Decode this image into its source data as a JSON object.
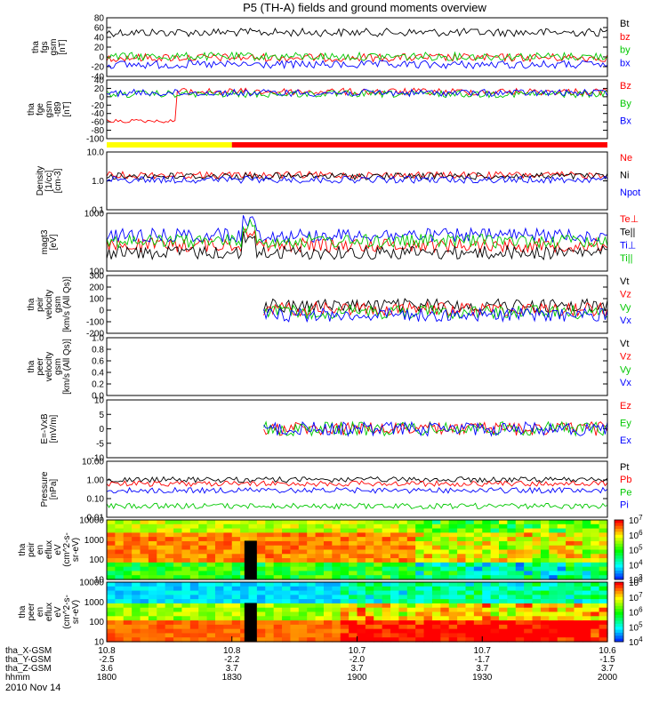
{
  "chart_data": {
    "type": "line",
    "title": "P5 (TH-A) fields and ground moments overview",
    "date_label": "2010 Nov 14",
    "time_axis": {
      "range": [
        "18:00",
        "20:00"
      ],
      "ticks": [
        "1800",
        "1830",
        "1900",
        "1930",
        "2000"
      ]
    },
    "ephemeris": {
      "rows": [
        {
          "label": "tha_X-GSM",
          "values": [
            "10.8",
            "10.8",
            "10.7",
            "10.7",
            "10.6"
          ]
        },
        {
          "label": "tha_Y-GSM",
          "values": [
            "-2.5",
            "-2.2",
            "-2.0",
            "-1.7",
            "-1.5"
          ]
        },
        {
          "label": "tha_Z-GSM",
          "values": [
            "3.6",
            "3.7",
            "3.7",
            "3.7",
            "3.7"
          ]
        },
        {
          "label": "hhmm",
          "values": [
            "1800",
            "1830",
            "1900",
            "1930",
            "2000"
          ]
        }
      ]
    },
    "status_bar": {
      "segments": [
        {
          "from": "18:00",
          "to": "18:30",
          "color": "#ffff00"
        },
        {
          "from": "18:30",
          "to": "20:00",
          "color": "#ff0000"
        }
      ]
    },
    "panels": [
      {
        "id": "fgs",
        "ylabel": [
          "tha",
          "fgs",
          "gsm",
          "[nT]"
        ],
        "yscale": "linear",
        "ticks": [
          "80",
          "60",
          "40",
          "20",
          "0",
          "-20",
          "-40"
        ],
        "series": [
          {
            "name": "Bt",
            "color": "#000000"
          },
          {
            "name": "bz",
            "color": "#ff0000"
          },
          {
            "name": "by",
            "color": "#00c800"
          },
          {
            "name": "bx",
            "color": "#0000ff"
          }
        ]
      },
      {
        "id": "fge",
        "ylabel": [
          "tha",
          "fge",
          "gsm",
          "-t89",
          "[nT]"
        ],
        "yscale": "linear",
        "ticks": [
          "40",
          "20",
          "0",
          "-20",
          "-40",
          "-60",
          "-80",
          "-100"
        ],
        "series": [
          {
            "name": "Bz",
            "color": "#ff0000"
          },
          {
            "name": "By",
            "color": "#00c800"
          },
          {
            "name": "Bx",
            "color": "#0000ff"
          }
        ]
      },
      {
        "id": "density",
        "ylabel": [
          "Density",
          "[1/cc]",
          "[cm-3]"
        ],
        "yscale": "log",
        "ticks": [
          "10.0",
          "1.0",
          "0.1"
        ],
        "series": [
          {
            "name": "Ne",
            "color": "#ff0000"
          },
          {
            "name": "Ni",
            "color": "#000000"
          },
          {
            "name": "Npot",
            "color": "#0000ff"
          }
        ]
      },
      {
        "id": "temp",
        "ylabel": [
          "magt3",
          "[eV]"
        ],
        "yscale": "log",
        "ticks": [
          "1000",
          "100"
        ],
        "series": [
          {
            "name": "Te⊥",
            "color": "#ff0000"
          },
          {
            "name": "Te||",
            "color": "#000000"
          },
          {
            "name": "Ti⊥",
            "color": "#0000ff"
          },
          {
            "name": "Ti||",
            "color": "#00c800"
          }
        ]
      },
      {
        "id": "peir",
        "ylabel": [
          "tha",
          "peir",
          "velocity",
          "gsm",
          "[km/s (All Qs)]"
        ],
        "yscale": "linear",
        "ticks": [
          "300",
          "200",
          "100",
          "0",
          "-100",
          "-200"
        ],
        "series": [
          {
            "name": "Vt",
            "color": "#000000"
          },
          {
            "name": "Vz",
            "color": "#ff0000"
          },
          {
            "name": "Vy",
            "color": "#00c800"
          },
          {
            "name": "Vx",
            "color": "#0000ff"
          }
        ]
      },
      {
        "id": "peer",
        "ylabel": [
          "tha",
          "peer",
          "velocity",
          "gsm",
          "[km/s (All Qs)]"
        ],
        "yscale": "linear",
        "ticks": [
          "1.0",
          "0.8",
          "0.6",
          "0.4",
          "0.2",
          "0.0"
        ],
        "series": [
          {
            "name": "Vt",
            "color": "#000000"
          },
          {
            "name": "Vz",
            "color": "#ff0000"
          },
          {
            "name": "Vy",
            "color": "#00c800"
          },
          {
            "name": "Vx",
            "color": "#0000ff"
          }
        ]
      },
      {
        "id": "efield",
        "ylabel": [
          "E=-VxB",
          "[mV/m]"
        ],
        "yscale": "linear",
        "ticks": [
          "10",
          "5",
          "0",
          "-5",
          "-10"
        ],
        "series": [
          {
            "name": "Ez",
            "color": "#ff0000"
          },
          {
            "name": "Ey",
            "color": "#00c800"
          },
          {
            "name": "Ex",
            "color": "#0000ff"
          }
        ]
      },
      {
        "id": "pressure",
        "ylabel": [
          "Pressure",
          "[nPa]"
        ],
        "yscale": "log",
        "ticks": [
          "10.00",
          "1.00",
          "0.10",
          "0.01"
        ],
        "series": [
          {
            "name": "Pt",
            "color": "#000000"
          },
          {
            "name": "Pb",
            "color": "#ff0000"
          },
          {
            "name": "Pe",
            "color": "#00c800"
          },
          {
            "name": "Pi",
            "color": "#0000ff"
          }
        ]
      },
      {
        "id": "peir_spec",
        "type": "heatmap",
        "ylabel": [
          "tha",
          "peir",
          "en",
          "eflux",
          "eV",
          "(cm^2-s-",
          "sr-eV)"
        ],
        "ticks": [
          "10000",
          "1000",
          "100",
          "10"
        ],
        "colorbar": [
          "10^7",
          "10^6",
          "10^5",
          "10^4",
          "10^3"
        ]
      },
      {
        "id": "peer_spec",
        "type": "heatmap",
        "ylabel": [
          "tha",
          "peer",
          "en",
          "eflux",
          "eV",
          "(cm^2-s-",
          "sr-eV)"
        ],
        "ticks": [
          "10000",
          "1000",
          "100",
          "10"
        ],
        "colorbar": [
          "10^8",
          "10^7",
          "10^6",
          "10^5",
          "10^4"
        ]
      }
    ]
  }
}
